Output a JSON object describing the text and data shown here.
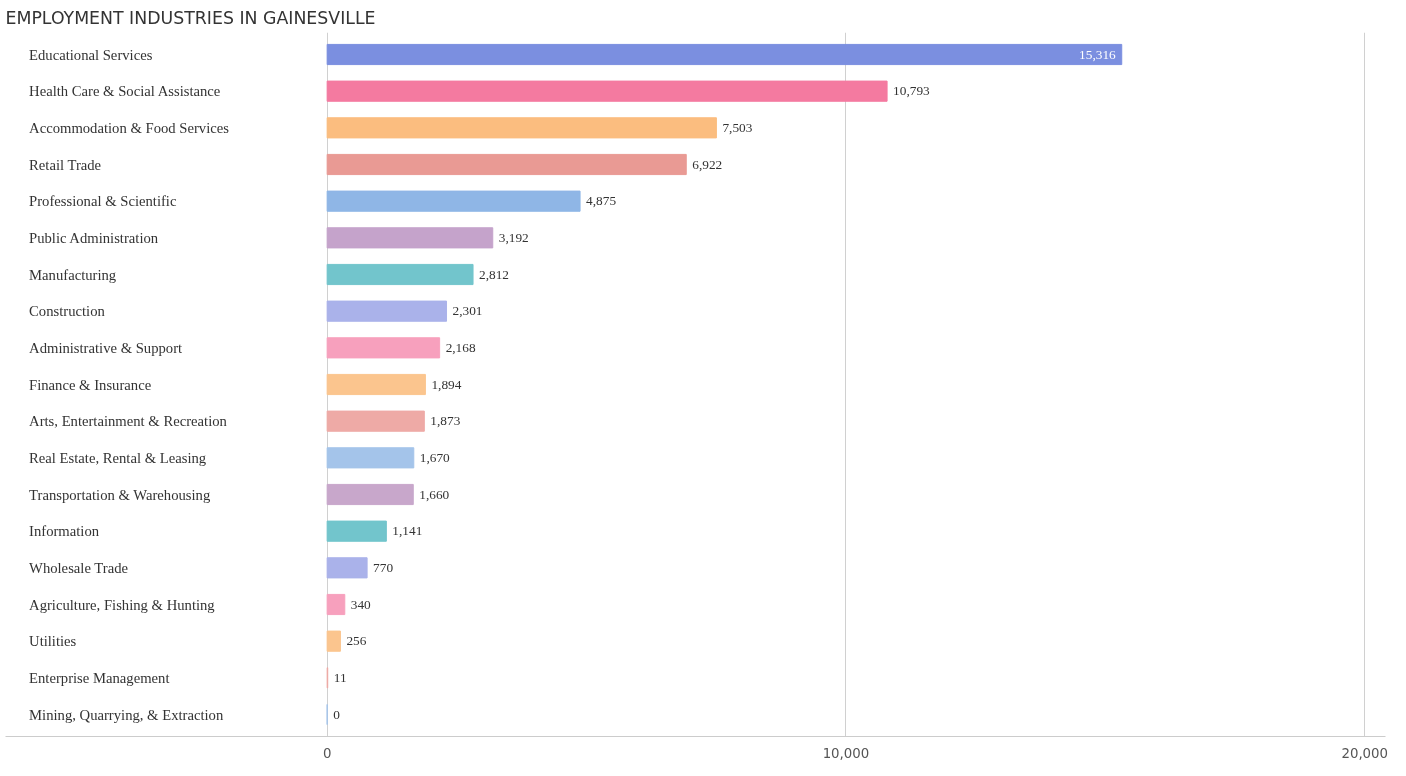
{
  "chart_data": {
    "type": "bar",
    "orientation": "horizontal",
    "title": "EMPLOYMENT INDUSTRIES IN GAINESVILLE",
    "categories": [
      "Educational Services",
      "Health Care & Social Assistance",
      "Accommodation & Food Services",
      "Retail Trade",
      "Professional & Scientific",
      "Public Administration",
      "Manufacturing",
      "Construction",
      "Administrative & Support",
      "Finance & Insurance",
      "Arts, Entertainment & Recreation",
      "Real Estate, Rental & Leasing",
      "Transportation & Warehousing",
      "Information",
      "Wholesale Trade",
      "Agriculture, Fishing & Hunting",
      "Utilities",
      "Enterprise Management",
      "Mining, Quarrying, & Extraction"
    ],
    "values": [
      15316,
      10793,
      7503,
      6922,
      4875,
      3192,
      2812,
      2301,
      2168,
      1894,
      1873,
      1670,
      1660,
      1141,
      770,
      340,
      256,
      11,
      0
    ],
    "value_labels": [
      "15,316",
      "10,793",
      "7,503",
      "6,922",
      "4,875",
      "3,192",
      "2,812",
      "2,301",
      "2,168",
      "1,894",
      "1,873",
      "1,670",
      "1,660",
      "1,141",
      "770",
      "340",
      "256",
      "11",
      "0"
    ],
    "colors": [
      "#7b8fe0",
      "#f47aa0",
      "#fbbd7f",
      "#e99a94",
      "#8fb6e6",
      "#c5a3cb",
      "#72c5cc",
      "#aab2ea",
      "#f7a0bd",
      "#fbc58e",
      "#eeaaa6",
      "#a4c4ea",
      "#c8a7cb",
      "#72c5cc",
      "#aab2ea",
      "#f7a0bd",
      "#fbc58e",
      "#eeaaa6",
      "#a4c4ea"
    ],
    "xlim": [
      -6200,
      20400
    ],
    "xticks": [
      {
        "value": 0,
        "label": "0"
      },
      {
        "value": 10000,
        "label": "10,000"
      },
      {
        "value": 20000,
        "label": "20,000"
      }
    ],
    "grid": "x"
  }
}
